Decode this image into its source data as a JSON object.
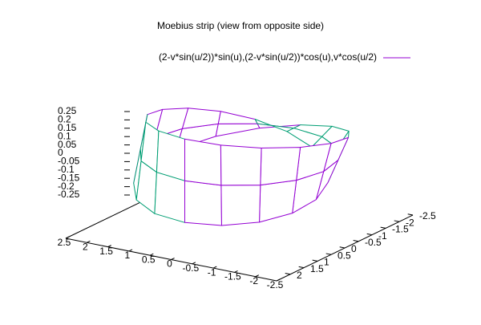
{
  "chart_data": {
    "type": "surface",
    "title": "Moebius strip (view from opposite side)",
    "xlim": [
      -2.5,
      2.5
    ],
    "ylim": [
      -2.5,
      2.5
    ],
    "zlim": [
      -0.25,
      0.25
    ],
    "xticks": [
      2.5,
      2,
      1.5,
      1,
      0.5,
      0,
      -0.5,
      -1,
      -1.5,
      -2,
      -2.5
    ],
    "yticks": [
      2,
      1.5,
      1,
      0.5,
      0,
      -0.5,
      -1,
      -1.5,
      -2,
      -2.5
    ],
    "zticks": [
      0.25,
      0.2,
      0.15,
      0.1,
      0.05,
      0,
      -0.05,
      -0.1,
      -0.15,
      -0.2,
      -0.25
    ],
    "series": [
      {
        "name": "(2-v*sin(u/2))*sin(u),(2-v*sin(u/2))*cos(u),v*cos(u/2)",
        "color": "#9400d3",
        "back_color": "#009e73",
        "x": [
          [
            0,
            0.784,
            1.482,
            1.976,
            2.177,
            2.04,
            1.578,
            0.859,
            0,
            -0.859,
            -1.578,
            -2.04,
            -2.177,
            -1.976,
            -1.482,
            -0.784,
            0
          ],
          [
            0,
            0.765,
            1.414,
            1.848,
            2,
            1.848,
            1.414,
            0.765,
            0,
            -0.765,
            -1.414,
            -1.848,
            -2,
            -1.848,
            -1.414,
            -0.765,
            0
          ],
          [
            0,
            0.747,
            1.347,
            1.719,
            1.823,
            1.656,
            1.251,
            0.672,
            0,
            -0.672,
            -1.251,
            -1.656,
            -1.823,
            -1.719,
            -1.347,
            -0.747,
            0
          ]
        ],
        "y": [
          [
            2,
            1.893,
            1.482,
            0.819,
            0,
            -0.845,
            -1.578,
            -2.074,
            -2.25,
            -2.074,
            -1.578,
            -0.845,
            0,
            0.819,
            1.482,
            1.893,
            2
          ],
          [
            2,
            1.848,
            1.414,
            0.765,
            0,
            -0.765,
            -1.414,
            -1.848,
            -2,
            -1.848,
            -1.414,
            -0.765,
            0,
            0.765,
            1.414,
            1.848,
            2
          ],
          [
            2,
            1.803,
            1.347,
            0.712,
            0,
            -0.686,
            -1.251,
            -1.621,
            -1.75,
            -1.621,
            -1.251,
            -0.686,
            0,
            0.712,
            1.347,
            1.803,
            2
          ]
        ],
        "z": [
          [
            -0.25,
            -0.245,
            -0.231,
            -0.208,
            -0.177,
            -0.139,
            -0.096,
            -0.049,
            0,
            0.049,
            0.096,
            0.139,
            0.177,
            0.208,
            0.231,
            0.245,
            0.25
          ],
          [
            0,
            0,
            0,
            0,
            0,
            0,
            0,
            0,
            0,
            0,
            0,
            0,
            0,
            0,
            0,
            0,
            0
          ],
          [
            0.25,
            0.245,
            0.231,
            0.208,
            0.177,
            0.139,
            0.096,
            0.049,
            0,
            -0.049,
            -0.096,
            -0.139,
            -0.177,
            -0.208,
            -0.231,
            -0.245,
            -0.25
          ]
        ]
      }
    ]
  }
}
